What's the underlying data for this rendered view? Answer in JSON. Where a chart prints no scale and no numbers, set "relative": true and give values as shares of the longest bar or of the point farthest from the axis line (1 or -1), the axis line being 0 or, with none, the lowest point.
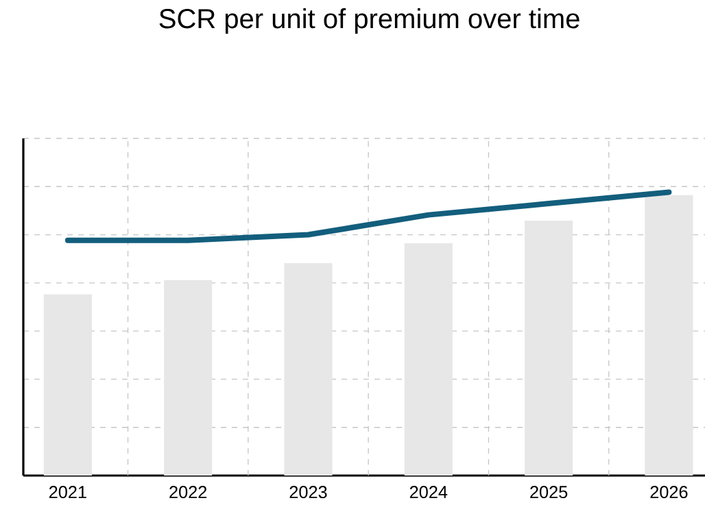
{
  "chart_data": {
    "type": "bar",
    "title": "SCR per unit of premium over time",
    "relative": true,
    "grid": true,
    "categories": [
      "2021",
      "2022",
      "2023",
      "2024",
      "2025",
      "2026"
    ],
    "series": [
      {
        "color": "#e7e7e7",
        "values": [
          0.64,
          0.69,
          0.75,
          0.82,
          0.9,
          0.99
        ]
      },
      {
        "type": "line",
        "color": "#135e7d",
        "values": [
          0.83,
          0.83,
          0.85,
          0.92,
          0.96,
          1.0
        ]
      }
    ]
  }
}
